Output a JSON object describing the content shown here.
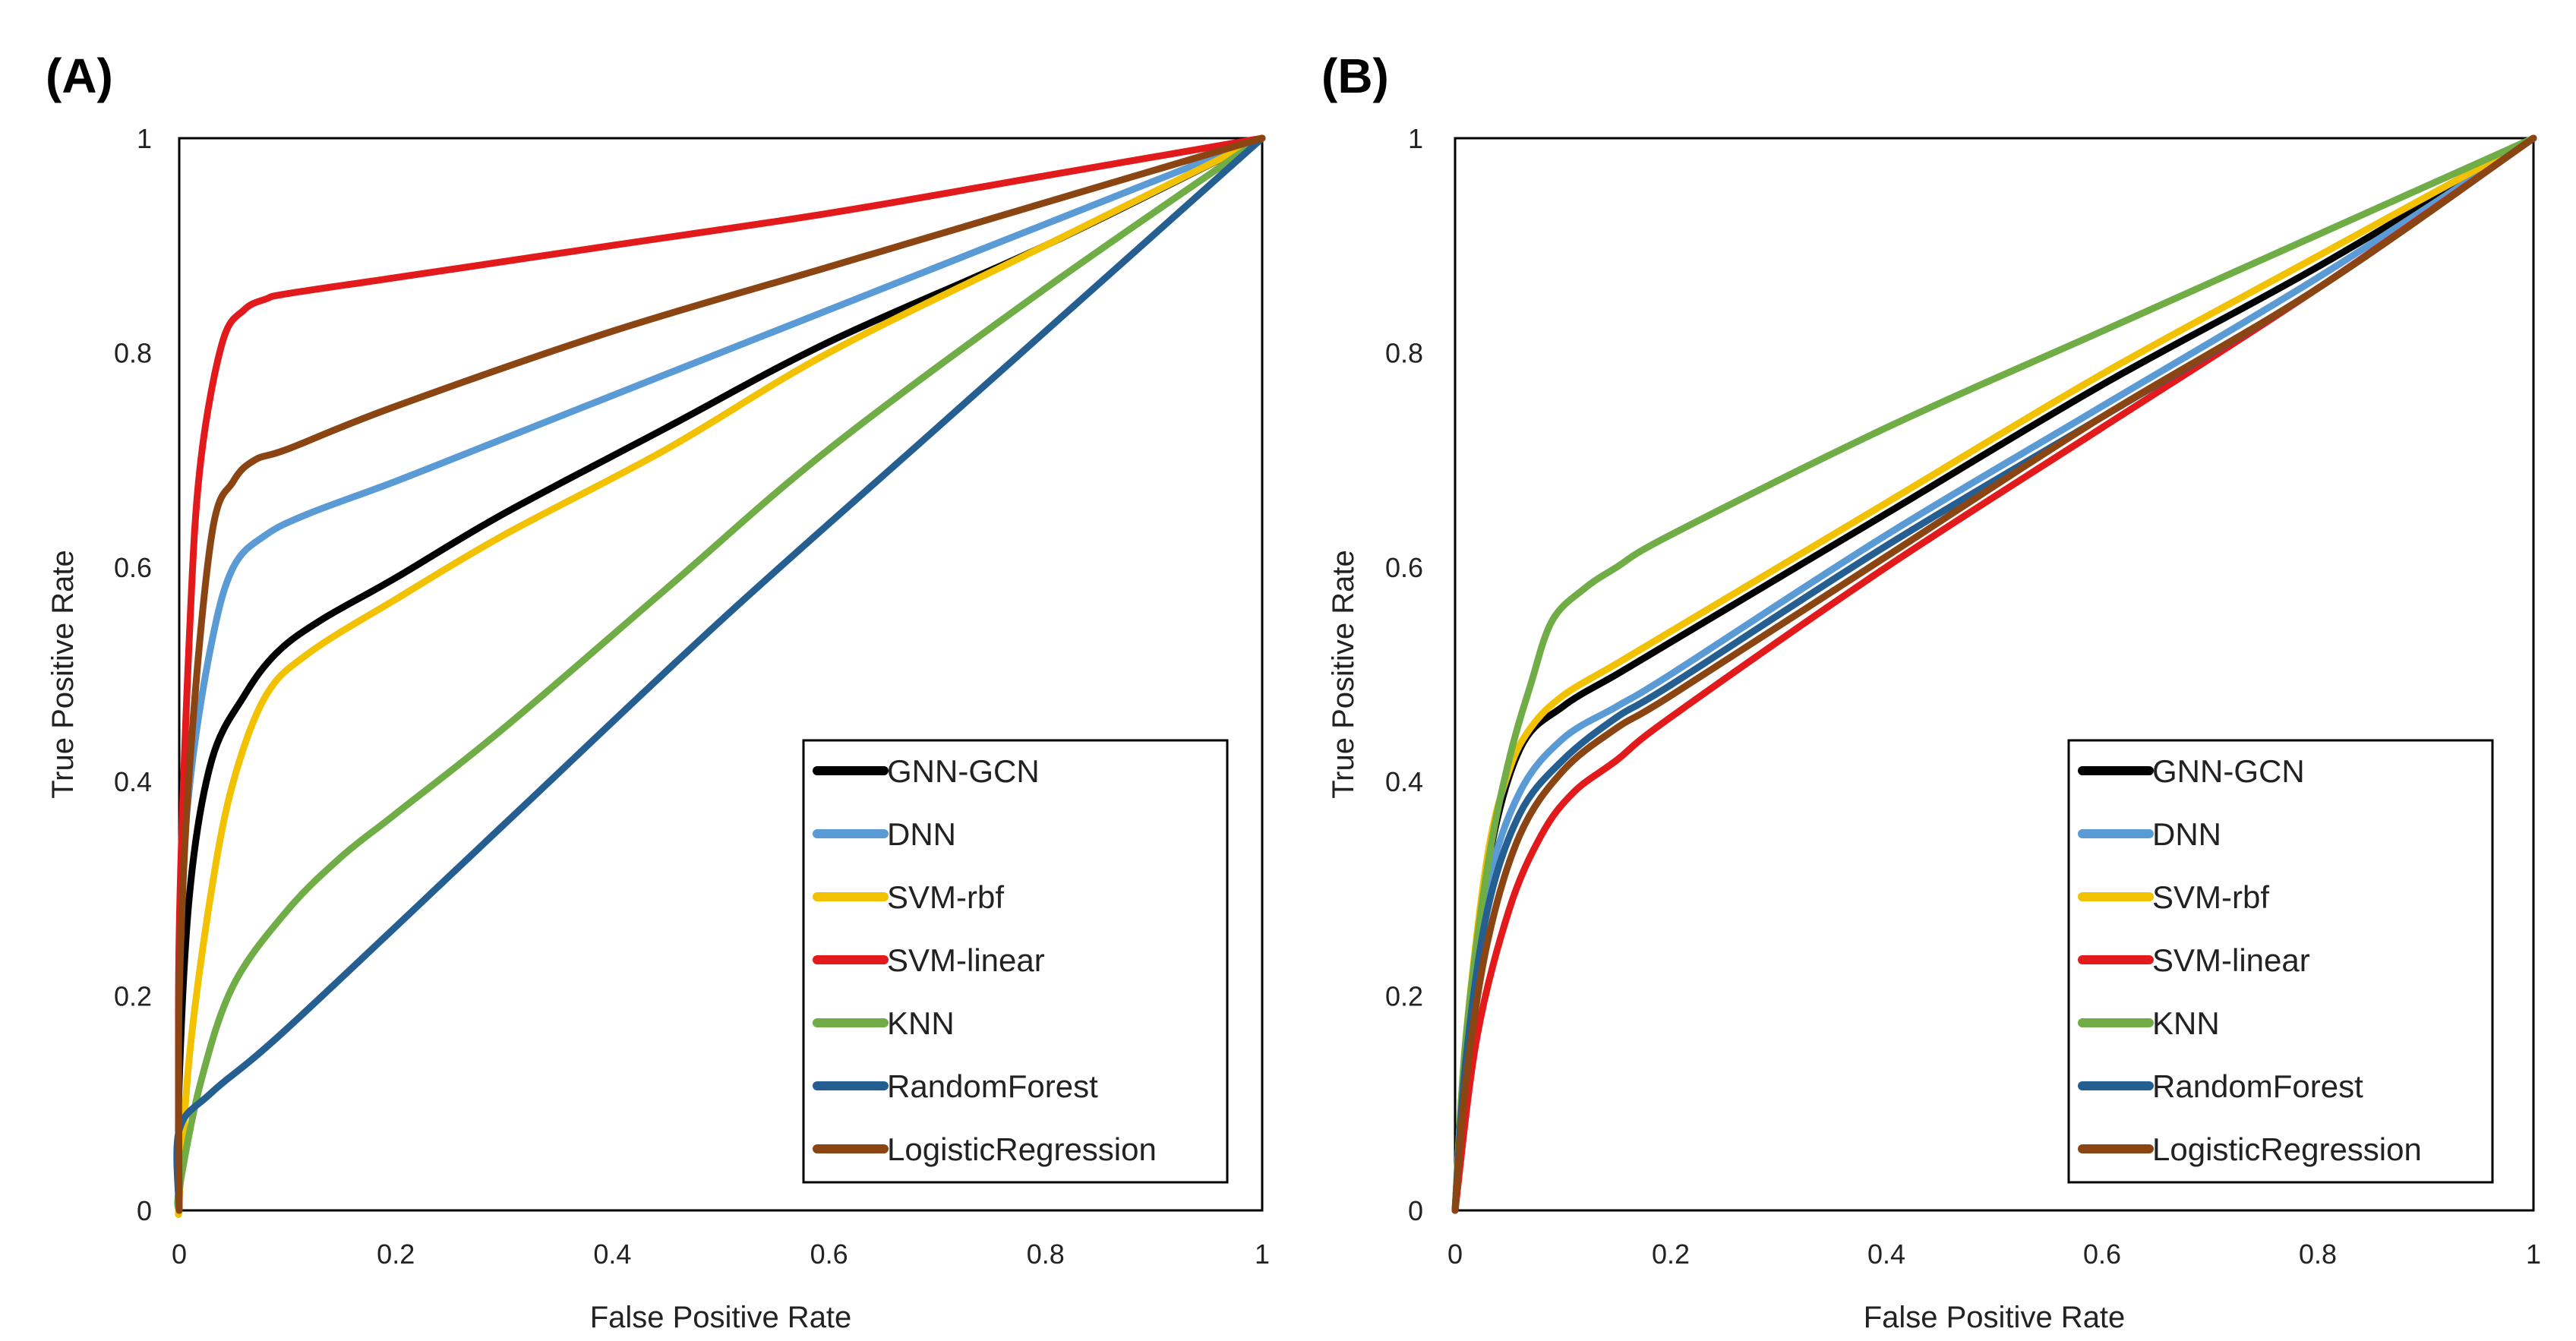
{
  "chart_data": [
    {
      "type": "line",
      "panel_label": "(A)",
      "xlabel": "False Positive Rate",
      "ylabel": "True Positive Rate",
      "xlim": [
        0,
        1
      ],
      "ylim": [
        0,
        1
      ],
      "x_ticks": [
        "0",
        "0.2",
        "0.4",
        "0.6",
        "0.8",
        "1"
      ],
      "y_ticks": [
        "0",
        "0.2",
        "0.4",
        "0.6",
        "0.8",
        "1"
      ],
      "legend_position": "bottom-right",
      "series": [
        {
          "name": "GNN-GCN",
          "color": "#000000",
          "x": [
            0,
            0,
            0.01,
            0.03,
            0.06,
            0.09,
            0.13,
            0.2,
            0.3,
            0.45,
            0.6,
            0.8,
            1
          ],
          "y": [
            0,
            0.12,
            0.3,
            0.42,
            0.48,
            0.52,
            0.55,
            0.59,
            0.65,
            0.73,
            0.81,
            0.9,
            1
          ]
        },
        {
          "name": "DNN",
          "color": "#5B9BD5",
          "x": [
            0,
            0,
            0.01,
            0.03,
            0.05,
            0.08,
            0.12,
            0.2,
            0.3,
            0.45,
            0.6,
            0.8,
            1
          ],
          "y": [
            0,
            0.25,
            0.4,
            0.53,
            0.6,
            0.63,
            0.65,
            0.68,
            0.72,
            0.78,
            0.84,
            0.92,
            1
          ]
        },
        {
          "name": "SVM-rbf",
          "color": "#F2C200",
          "x": [
            0,
            0,
            0.01,
            0.03,
            0.05,
            0.08,
            0.12,
            0.2,
            0.3,
            0.45,
            0.6,
            0.8,
            1
          ],
          "y": [
            0,
            0.01,
            0.15,
            0.3,
            0.4,
            0.48,
            0.52,
            0.57,
            0.63,
            0.71,
            0.8,
            0.9,
            1
          ]
        },
        {
          "name": "SVM-linear",
          "color": "#E31A1C",
          "x": [
            0,
            0,
            0.01,
            0.02,
            0.04,
            0.06,
            0.08,
            0.1,
            0.2,
            0.4,
            0.6,
            0.8,
            1
          ],
          "y": [
            0,
            0.26,
            0.55,
            0.7,
            0.81,
            0.84,
            0.85,
            0.855,
            0.87,
            0.9,
            0.93,
            0.965,
            1
          ]
        },
        {
          "name": "KNN",
          "color": "#70AD47",
          "x": [
            0,
            0,
            0.02,
            0.05,
            0.1,
            0.15,
            0.2,
            0.3,
            0.45,
            0.6,
            0.8,
            1
          ],
          "y": [
            0,
            0.02,
            0.12,
            0.21,
            0.28,
            0.33,
            0.37,
            0.45,
            0.58,
            0.71,
            0.86,
            1
          ]
        },
        {
          "name": "RandomForest",
          "color": "#255E91",
          "x": [
            0,
            0,
            0.03,
            0.1,
            0.3,
            0.5,
            0.7,
            0.9,
            1
          ],
          "y": [
            0,
            0.075,
            0.11,
            0.17,
            0.36,
            0.55,
            0.73,
            0.91,
            1
          ]
        },
        {
          "name": "LogisticRegression",
          "color": "#8B4513",
          "x": [
            0,
            0,
            0.01,
            0.03,
            0.05,
            0.07,
            0.1,
            0.2,
            0.4,
            0.6,
            0.8,
            1
          ],
          "y": [
            0,
            0.2,
            0.42,
            0.63,
            0.68,
            0.7,
            0.71,
            0.75,
            0.82,
            0.88,
            0.94,
            1
          ]
        }
      ]
    },
    {
      "type": "line",
      "panel_label": "(B)",
      "xlabel": "False Positive Rate",
      "ylabel": "True Positive Rate",
      "xlim": [
        0,
        1
      ],
      "ylim": [
        0,
        1
      ],
      "x_ticks": [
        "0",
        "0.2",
        "0.4",
        "0.6",
        "0.8",
        "1"
      ],
      "y_ticks": [
        "0",
        "0.2",
        "0.4",
        "0.6",
        "0.8",
        "1"
      ],
      "legend_position": "bottom-right",
      "series": [
        {
          "name": "GNN-GCN",
          "color": "#000000",
          "x": [
            0,
            0.01,
            0.03,
            0.06,
            0.1,
            0.15,
            0.2,
            0.4,
            0.6,
            0.8,
            1
          ],
          "y": [
            0,
            0.15,
            0.32,
            0.43,
            0.47,
            0.5,
            0.53,
            0.65,
            0.77,
            0.88,
            1
          ]
        },
        {
          "name": "DNN",
          "color": "#5B9BD5",
          "x": [
            0,
            0.01,
            0.03,
            0.06,
            0.1,
            0.15,
            0.2,
            0.4,
            0.6,
            0.8,
            1
          ],
          "y": [
            0,
            0.15,
            0.3,
            0.39,
            0.44,
            0.47,
            0.5,
            0.63,
            0.75,
            0.87,
            1
          ]
        },
        {
          "name": "SVM-rbf",
          "color": "#F2C200",
          "x": [
            0,
            0.01,
            0.03,
            0.05,
            0.07,
            0.1,
            0.15,
            0.2,
            0.4,
            0.6,
            0.8,
            1
          ],
          "y": [
            0,
            0.16,
            0.33,
            0.41,
            0.45,
            0.48,
            0.51,
            0.54,
            0.66,
            0.78,
            0.89,
            1
          ]
        },
        {
          "name": "SVM-linear",
          "color": "#E31A1C",
          "x": [
            0,
            0.02,
            0.05,
            0.08,
            0.11,
            0.15,
            0.2,
            0.4,
            0.6,
            0.8,
            1
          ],
          "y": [
            0,
            0.16,
            0.28,
            0.35,
            0.39,
            0.42,
            0.46,
            0.6,
            0.73,
            0.86,
            1
          ]
        },
        {
          "name": "KNN",
          "color": "#70AD47",
          "x": [
            0,
            0.01,
            0.03,
            0.05,
            0.07,
            0.09,
            0.12,
            0.15,
            0.2,
            0.4,
            0.6,
            0.8,
            1
          ],
          "y": [
            0,
            0.16,
            0.32,
            0.42,
            0.49,
            0.55,
            0.58,
            0.6,
            0.63,
            0.73,
            0.82,
            0.91,
            1
          ]
        },
        {
          "name": "RandomForest",
          "color": "#255E91",
          "x": [
            0,
            0.01,
            0.03,
            0.06,
            0.1,
            0.15,
            0.2,
            0.4,
            0.6,
            0.8,
            1
          ],
          "y": [
            0,
            0.14,
            0.28,
            0.37,
            0.42,
            0.46,
            0.49,
            0.62,
            0.74,
            0.86,
            1
          ]
        },
        {
          "name": "LogisticRegression",
          "color": "#8B4513",
          "x": [
            0,
            0.01,
            0.03,
            0.06,
            0.1,
            0.15,
            0.2,
            0.4,
            0.6,
            0.8,
            1
          ],
          "y": [
            0,
            0.12,
            0.25,
            0.35,
            0.41,
            0.45,
            0.48,
            0.61,
            0.74,
            0.86,
            1
          ]
        }
      ]
    }
  ]
}
